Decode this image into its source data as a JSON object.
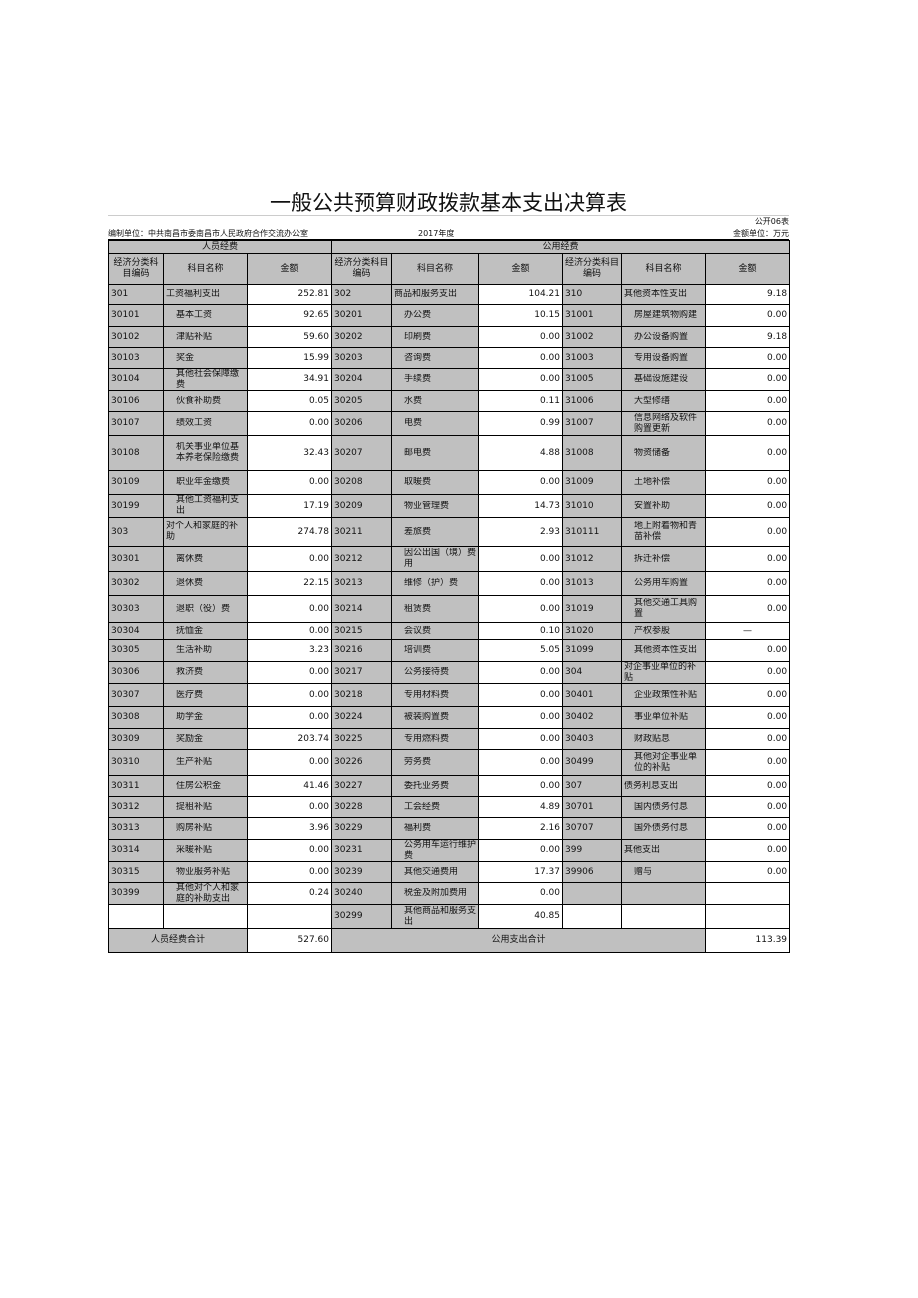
{
  "title": "一般公共预算财政拨款基本支出决算表",
  "form_no": "公开06表",
  "unit_label": "编制单位：中共南昌市委南昌市人民政府合作交流办公室",
  "year": "2017年度",
  "currency": "金额单位：万元",
  "sections": {
    "personnel": "人员经费",
    "public": "公用经费"
  },
  "headers": {
    "code": "经济分类科目编码",
    "name": "科目名称",
    "amount": "金额"
  },
  "rows": [
    [
      [
        "301",
        "工资福利支出",
        "252.81",
        0
      ],
      [
        "302",
        "商品和服务支出",
        "104.21",
        0
      ],
      [
        "310",
        "其他资本性支出",
        "9.18",
        0
      ]
    ],
    [
      [
        "30101",
        "基本工资",
        "92.65",
        1
      ],
      [
        "30201",
        "办公费",
        "10.15",
        1
      ],
      [
        "31001",
        "房屋建筑物购建",
        "0.00",
        1
      ]
    ],
    [
      [
        "30102",
        "津贴补贴",
        "59.60",
        1
      ],
      [
        "30202",
        "印刷费",
        "0.00",
        1
      ],
      [
        "31002",
        "办公设备购置",
        "9.18",
        1
      ]
    ],
    [
      [
        "30103",
        "奖金",
        "15.99",
        1
      ],
      [
        "30203",
        "咨询费",
        "0.00",
        1
      ],
      [
        "31003",
        "专用设备购置",
        "0.00",
        1
      ]
    ],
    [
      [
        "30104",
        "其他社会保障缴费",
        "34.91",
        1
      ],
      [
        "30204",
        "手续费",
        "0.00",
        1
      ],
      [
        "31005",
        "基础设施建设",
        "0.00",
        1
      ]
    ],
    [
      [
        "30106",
        "伙食补助费",
        "0.05",
        1
      ],
      [
        "30205",
        "水费",
        "0.11",
        1
      ],
      [
        "31006",
        "大型修缮",
        "0.00",
        1
      ]
    ],
    [
      [
        "30107",
        "绩效工资",
        "0.00",
        1
      ],
      [
        "30206",
        "电费",
        "0.99",
        1
      ],
      [
        "31007",
        "信息网络及软件购置更新",
        "0.00",
        1
      ]
    ],
    [
      [
        "30108",
        "机关事业单位基本养老保险缴费",
        "32.43",
        1
      ],
      [
        "30207",
        "邮电费",
        "4.88",
        1
      ],
      [
        "31008",
        "物资储备",
        "0.00",
        1
      ]
    ],
    [
      [
        "30109",
        "职业年金缴费",
        "0.00",
        1
      ],
      [
        "30208",
        "取暖费",
        "0.00",
        1
      ],
      [
        "31009",
        "土地补偿",
        "0.00",
        1
      ]
    ],
    [
      [
        "30199",
        "其他工资福利支出",
        "17.19",
        1
      ],
      [
        "30209",
        "物业管理费",
        "14.73",
        1
      ],
      [
        "31010",
        "安置补助",
        "0.00",
        1
      ]
    ],
    [
      [
        "303",
        "对个人和家庭的补助",
        "274.78",
        0
      ],
      [
        "30211",
        "差旅费",
        "2.93",
        1
      ],
      [
        "310111",
        "地上附着物和青苗补偿",
        "0.00",
        1
      ]
    ],
    [
      [
        "30301",
        "离休费",
        "0.00",
        1
      ],
      [
        "30212",
        "因公出国（境）费用",
        "0.00",
        1
      ],
      [
        "31012",
        "拆迁补偿",
        "0.00",
        1
      ]
    ],
    [
      [
        "30302",
        "退休费",
        "22.15",
        1
      ],
      [
        "30213",
        "维修（护）费",
        "0.00",
        1
      ],
      [
        "31013",
        "公务用车购置",
        "0.00",
        1
      ]
    ],
    [
      [
        "30303",
        "退职（役）费",
        "0.00",
        1
      ],
      [
        "30214",
        "租赁费",
        "0.00",
        1
      ],
      [
        "31019",
        "其他交通工具购置",
        "0.00",
        1
      ]
    ],
    [
      [
        "30304",
        "抚恤金",
        "0.00",
        1
      ],
      [
        "30215",
        "会议费",
        "0.10",
        1
      ],
      [
        "31020",
        "产权参股",
        "—",
        1
      ]
    ],
    [
      [
        "30305",
        "生活补助",
        "3.23",
        1
      ],
      [
        "30216",
        "培训费",
        "5.05",
        1
      ],
      [
        "31099",
        "其他资本性支出",
        "0.00",
        1
      ]
    ],
    [
      [
        "30306",
        "救济费",
        "0.00",
        1
      ],
      [
        "30217",
        "公务接待费",
        "0.00",
        1
      ],
      [
        "304",
        "对企事业单位的补贴",
        "0.00",
        0
      ]
    ],
    [
      [
        "30307",
        "医疗费",
        "0.00",
        1
      ],
      [
        "30218",
        "专用材料费",
        "0.00",
        1
      ],
      [
        "30401",
        "企业政策性补贴",
        "0.00",
        1
      ]
    ],
    [
      [
        "30308",
        "助学金",
        "0.00",
        1
      ],
      [
        "30224",
        "被装购置费",
        "0.00",
        1
      ],
      [
        "30402",
        "事业单位补贴",
        "0.00",
        1
      ]
    ],
    [
      [
        "30309",
        "奖励金",
        "203.74",
        1
      ],
      [
        "30225",
        "专用燃料费",
        "0.00",
        1
      ],
      [
        "30403",
        "财政贴息",
        "0.00",
        1
      ]
    ],
    [
      [
        "30310",
        "生产补贴",
        "0.00",
        1
      ],
      [
        "30226",
        "劳务费",
        "0.00",
        1
      ],
      [
        "30499",
        "其他对企事业单位的补贴",
        "0.00",
        1
      ]
    ],
    [
      [
        "30311",
        "住房公积金",
        "41.46",
        1
      ],
      [
        "30227",
        "委托业务费",
        "0.00",
        1
      ],
      [
        "307",
        "债务利息支出",
        "0.00",
        0
      ]
    ],
    [
      [
        "30312",
        "提租补贴",
        "0.00",
        1
      ],
      [
        "30228",
        "工会经费",
        "4.89",
        1
      ],
      [
        "30701",
        "国内债务付息",
        "0.00",
        1
      ]
    ],
    [
      [
        "30313",
        "购房补贴",
        "3.96",
        1
      ],
      [
        "30229",
        "福利费",
        "2.16",
        1
      ],
      [
        "30707",
        "国外债务付息",
        "0.00",
        1
      ]
    ],
    [
      [
        "30314",
        "采暖补贴",
        "0.00",
        1
      ],
      [
        "30231",
        "公务用车运行维护费",
        "0.00",
        1
      ],
      [
        "399",
        "其他支出",
        "0.00",
        0
      ]
    ],
    [
      [
        "30315",
        "物业服务补贴",
        "0.00",
        1
      ],
      [
        "30239",
        "其他交通费用",
        "17.37",
        1
      ],
      [
        "39906",
        "赠与",
        "0.00",
        1
      ]
    ],
    [
      [
        "30399",
        "其他对个人和家庭的补助支出",
        "0.24",
        1
      ],
      [
        "30240",
        "税金及附加费用",
        "0.00",
        1
      ],
      [
        "",
        "",
        "",
        0
      ]
    ],
    [
      [
        "",
        "",
        "",
        0
      ],
      [
        "30299",
        "其他商品和服务支出",
        "40.85",
        1
      ],
      [
        "",
        "",
        "",
        0
      ]
    ]
  ],
  "totals": {
    "personnel_label": "人员经费合计",
    "personnel_amount": "527.60",
    "public_label": "公用支出合计",
    "public_amount": "113.39"
  }
}
